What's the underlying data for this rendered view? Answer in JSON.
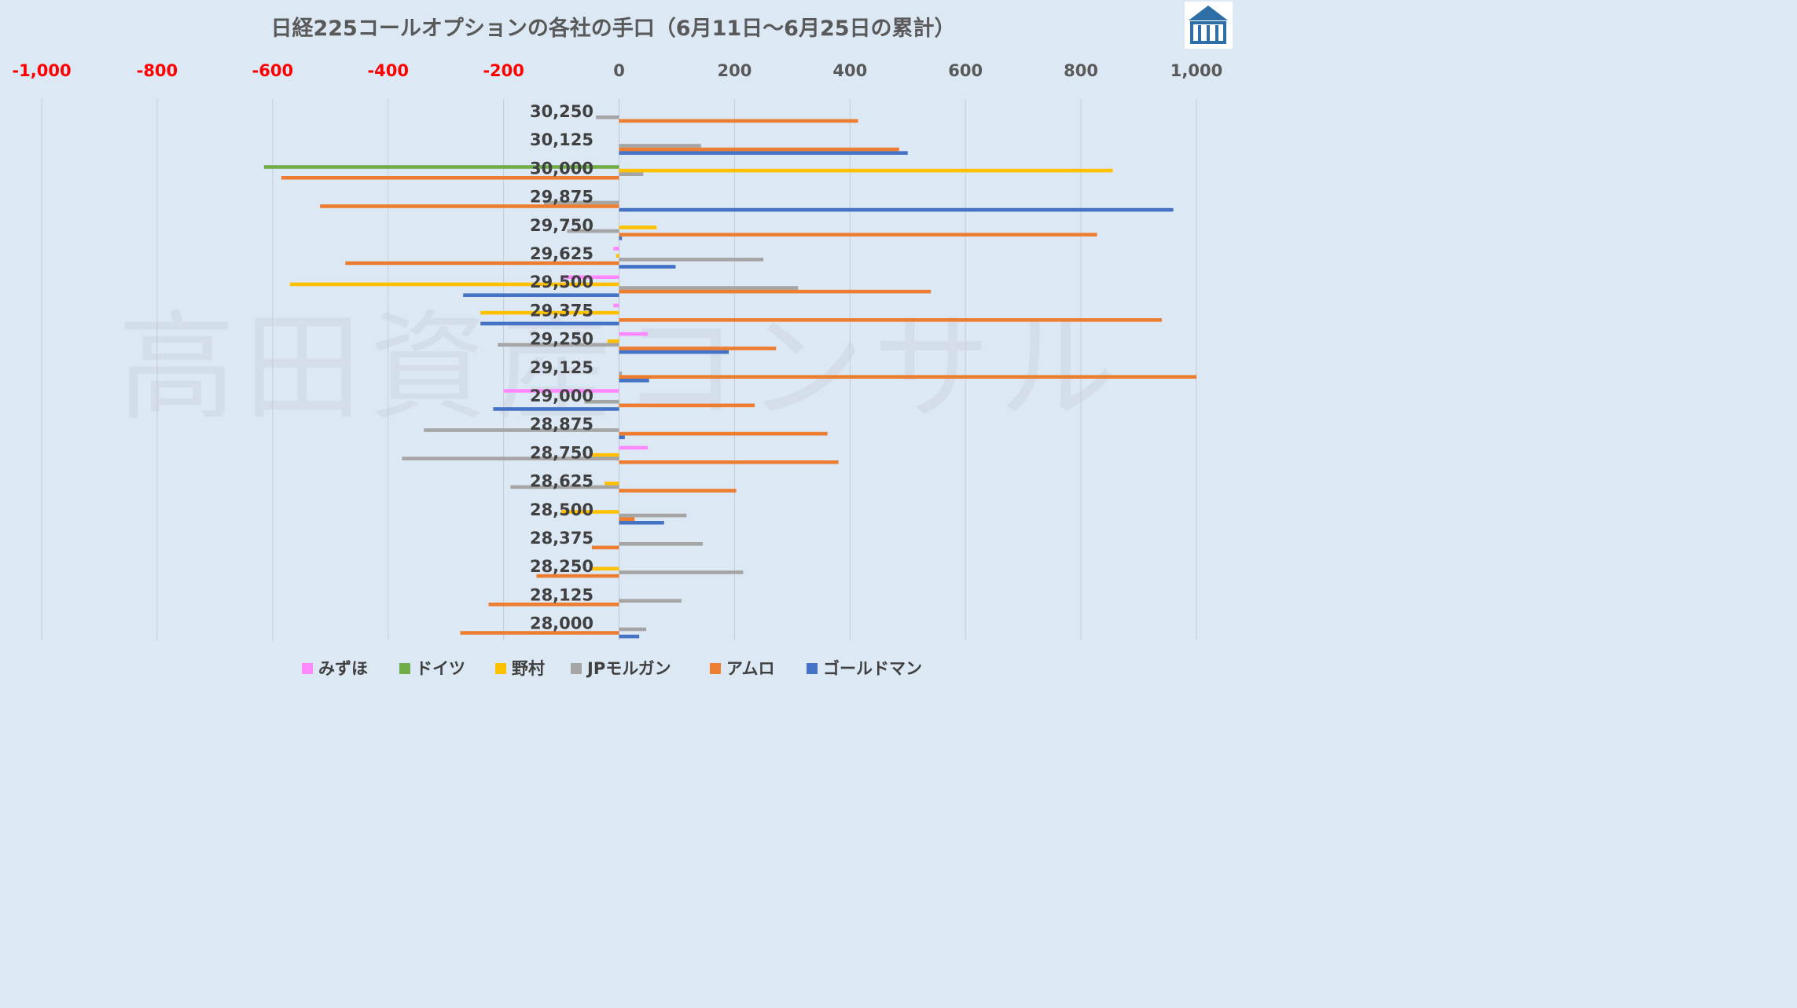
{
  "chart_data": {
    "type": "bar",
    "title": "日経225コールオプションの各社の手口（6月11日～6月25日の累計）",
    "watermark": "高田資産コンサル",
    "xlim": [
      -1000,
      1000
    ],
    "xticks": [
      -1000,
      -800,
      -600,
      -400,
      -200,
      0,
      200,
      400,
      600,
      800,
      1000
    ],
    "xtick_labels": [
      "-1,000",
      "-800",
      "-600",
      "-400",
      "-200",
      "0",
      "200",
      "400",
      "600",
      "800",
      "1,000"
    ],
    "negative_tick_color": "#ff0000",
    "positive_tick_color": "#595959",
    "grid": "vertical",
    "legend_position": "bottom",
    "categories": [
      "30,250",
      "30,125",
      "30,000",
      "29,875",
      "29,750",
      "29,625",
      "29,500",
      "29,375",
      "29,250",
      "29,125",
      "29,000",
      "28,875",
      "28,750",
      "28,625",
      "28,500",
      "28,375",
      "28,250",
      "28,125",
      "28,000"
    ],
    "series": [
      {
        "name": "みずほ",
        "color": "#ff88ff",
        "values": [
          0,
          0,
          0,
          0,
          0,
          -10,
          -100,
          -10,
          50,
          0,
          -200,
          0,
          50,
          0,
          0,
          0,
          0,
          0,
          0
        ]
      },
      {
        "name": "ドイツ",
        "color": "#70ad47",
        "values": [
          0,
          0,
          -615,
          0,
          0,
          0,
          0,
          0,
          0,
          0,
          0,
          0,
          0,
          0,
          0,
          0,
          0,
          0,
          0
        ]
      },
      {
        "name": "野村",
        "color": "#ffc000",
        "values": [
          0,
          0,
          855,
          0,
          65,
          -5,
          -570,
          -240,
          -20,
          0,
          0,
          0,
          -50,
          -25,
          -100,
          0,
          -50,
          0,
          0
        ]
      },
      {
        "name": "JPモルガン",
        "color": "#a5a5a5",
        "values": [
          -40,
          142,
          42,
          -130,
          -90,
          250,
          310,
          0,
          -210,
          5,
          -60,
          -338,
          -376,
          -188,
          117,
          145,
          215,
          108,
          47
        ]
      },
      {
        "name": "アムロ",
        "color": "#ed7d31",
        "values": [
          414,
          485,
          -585,
          -518,
          828,
          -474,
          540,
          940,
          272,
          1000,
          235,
          361,
          380,
          203,
          27,
          -47,
          -143,
          -226,
          -275
        ]
      },
      {
        "name": "ゴールドマン",
        "color": "#4472c4",
        "values": [
          0,
          500,
          0,
          960,
          5,
          98,
          -270,
          -240,
          190,
          52,
          -218,
          10,
          0,
          0,
          78,
          0,
          0,
          0,
          35
        ]
      }
    ]
  },
  "logo": {
    "name": "takata-logo"
  }
}
